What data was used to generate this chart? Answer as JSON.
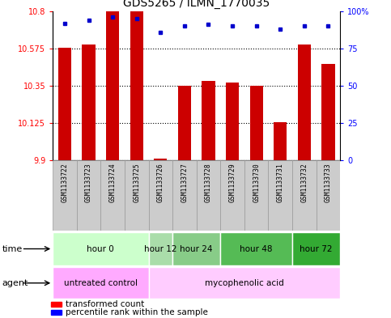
{
  "title": "GDS5265 / ILMN_1770035",
  "samples": [
    "GSM1133722",
    "GSM1133723",
    "GSM1133724",
    "GSM1133725",
    "GSM1133726",
    "GSM1133727",
    "GSM1133728",
    "GSM1133729",
    "GSM1133730",
    "GSM1133731",
    "GSM1133732",
    "GSM1133733"
  ],
  "red_values": [
    10.58,
    10.6,
    10.8,
    10.8,
    9.91,
    10.35,
    10.38,
    10.37,
    10.35,
    10.13,
    10.6,
    10.48
  ],
  "blue_values": [
    92,
    94,
    96,
    95,
    86,
    90,
    91,
    90,
    90,
    88,
    90,
    90
  ],
  "ymin": 9.9,
  "ymax": 10.8,
  "yticks": [
    9.9,
    10.125,
    10.35,
    10.575,
    10.8
  ],
  "ytick_labels": [
    "9.9",
    "10.125",
    "10.35",
    "10.575",
    "10.8"
  ],
  "right_yticks": [
    0,
    25,
    50,
    75,
    100
  ],
  "right_ytick_labels": [
    "0",
    "25",
    "50",
    "75",
    "100%"
  ],
  "bar_color": "#cc0000",
  "dot_color": "#0000cc",
  "time_groups": [
    {
      "label": "hour 0",
      "start": 0,
      "end": 3,
      "color": "#ccffcc"
    },
    {
      "label": "hour 12",
      "start": 4,
      "end": 4,
      "color": "#aaddaa"
    },
    {
      "label": "hour 24",
      "start": 5,
      "end": 6,
      "color": "#88cc88"
    },
    {
      "label": "hour 48",
      "start": 7,
      "end": 9,
      "color": "#55bb55"
    },
    {
      "label": "hour 72",
      "start": 10,
      "end": 11,
      "color": "#33aa33"
    }
  ],
  "agent_groups": [
    {
      "label": "untreated control",
      "start": 0,
      "end": 3,
      "color": "#ffaaff"
    },
    {
      "label": "mycophenolic acid",
      "start": 4,
      "end": 11,
      "color": "#ffccff"
    }
  ],
  "legend_red": "transformed count",
  "legend_blue": "percentile rank within the sample",
  "bar_width": 0.55,
  "sample_box_color": "#cccccc",
  "sample_box_edge": "#999999"
}
